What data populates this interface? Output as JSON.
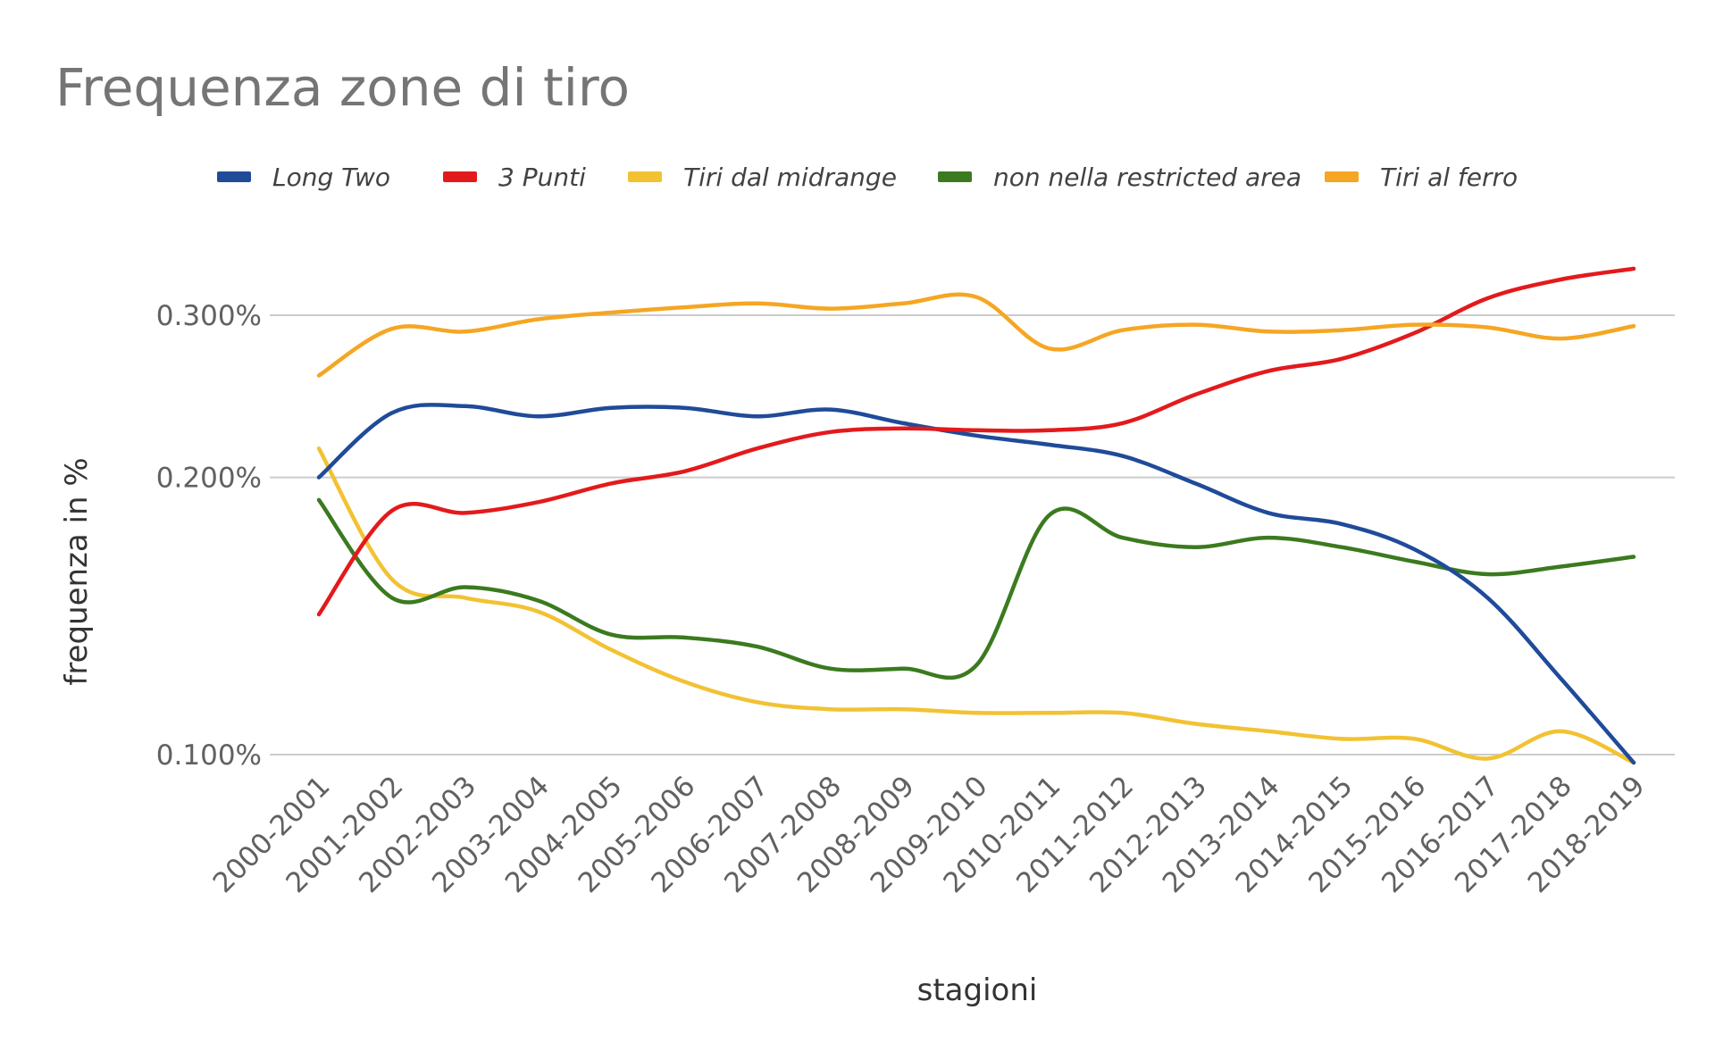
{
  "chart_data": {
    "type": "line",
    "title": "Frequenza zone di tiro",
    "xlabel": "stagioni",
    "ylabel": "frequenza in %",
    "y_scale": "log",
    "yticks": [
      0.1,
      0.2,
      0.3
    ],
    "ytick_labels": [
      "0.100%",
      "0.200%",
      "0.300%"
    ],
    "ylim": [
      0.097,
      0.344
    ],
    "grid": true,
    "legend_position": "top",
    "categories": [
      "2000-2001",
      "2001-2002",
      "2002-2003",
      "2003-2004",
      "2004-2005",
      "2005-2006",
      "2006-2007",
      "2007-2008",
      "2008-2009",
      "2009-2010",
      "2010-2011",
      "2011-2012",
      "2012-2013",
      "2013-2014",
      "2014-2015",
      "2015-2016",
      "2016-2017",
      "2017-2018",
      "2018-2019"
    ],
    "series": [
      {
        "name": "Long Two",
        "color": "#1f4b99",
        "values": [
          0.2,
          0.235,
          0.239,
          0.233,
          0.238,
          0.238,
          0.233,
          0.237,
          0.229,
          0.222,
          0.217,
          0.211,
          0.197,
          0.183,
          0.178,
          0.167,
          0.148,
          0.121,
          0.098
        ]
      },
      {
        "name": "3 Punti",
        "color": "#e31a1c",
        "values": [
          0.142,
          0.184,
          0.183,
          0.188,
          0.197,
          0.203,
          0.215,
          0.224,
          0.226,
          0.225,
          0.225,
          0.229,
          0.246,
          0.261,
          0.269,
          0.287,
          0.313,
          0.328,
          0.337
        ]
      },
      {
        "name": "Tiri dal midrange",
        "color": "#f2c233",
        "values": [
          0.215,
          0.155,
          0.148,
          0.143,
          0.13,
          0.12,
          0.114,
          0.112,
          0.112,
          0.111,
          0.111,
          0.111,
          0.108,
          0.106,
          0.104,
          0.104,
          0.099,
          0.106,
          0.098
        ]
      },
      {
        "name": "non nella restricted area",
        "color": "#3b7a1f",
        "values": [
          0.189,
          0.148,
          0.152,
          0.147,
          0.135,
          0.134,
          0.131,
          0.124,
          0.124,
          0.125,
          0.182,
          0.172,
          0.168,
          0.172,
          0.168,
          0.162,
          0.157,
          0.16,
          0.164
        ]
      },
      {
        "name": "Tiri al ferro",
        "color": "#f5a623",
        "values": [
          0.258,
          0.29,
          0.288,
          0.297,
          0.302,
          0.306,
          0.309,
          0.305,
          0.309,
          0.314,
          0.276,
          0.289,
          0.293,
          0.288,
          0.289,
          0.293,
          0.291,
          0.283,
          0.292
        ]
      }
    ]
  }
}
